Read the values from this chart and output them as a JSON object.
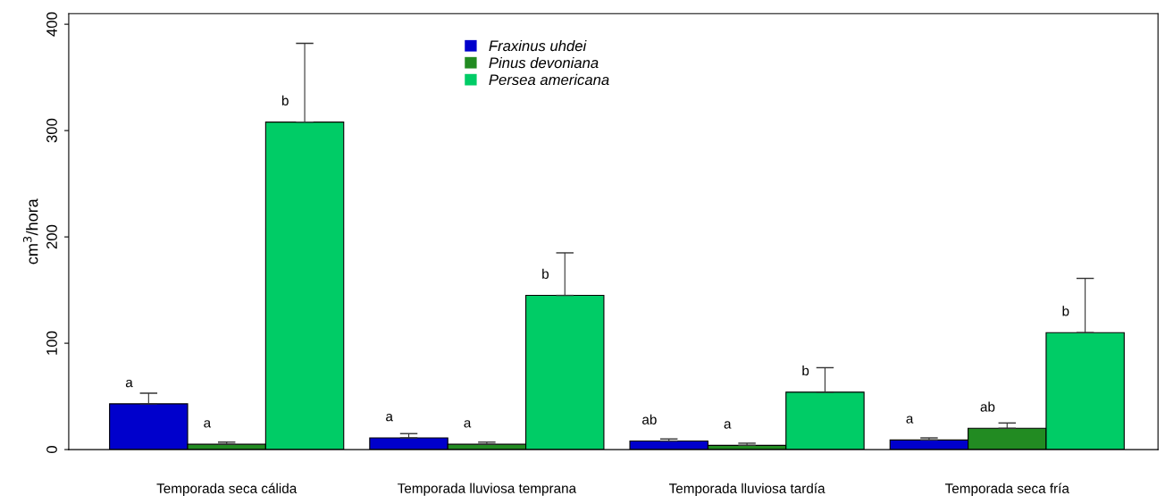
{
  "chart_data": {
    "type": "bar",
    "ylabel": "cm$^{3}$/hora",
    "categories": [
      "Temporada seca cálida",
      "Temporada lluviosa temprana",
      "Temporada lluviosa tardía",
      "Temporada seca fría"
    ],
    "series": [
      {
        "name": "Fraxinus uhdei",
        "color": "#0000cc",
        "values": [
          43,
          11,
          8,
          9
        ],
        "errors": [
          10,
          4,
          2,
          2
        ],
        "value_labels": [
          "a",
          "a",
          "ab",
          "a"
        ]
      },
      {
        "name": "Pinus devoniana",
        "color": "#228b22",
        "values": [
          5,
          5,
          4,
          20
        ],
        "errors": [
          2,
          2,
          2,
          5
        ],
        "value_labels": [
          "a",
          "a",
          "a",
          "ab"
        ]
      },
      {
        "name": "Persea americana",
        "color": "#00cc66",
        "values": [
          308,
          145,
          54,
          110
        ],
        "errors": [
          74,
          40,
          23,
          51
        ],
        "value_labels": [
          "b",
          "b",
          "b",
          "b"
        ]
      }
    ],
    "ylim": [
      0,
      410
    ],
    "yticks": [
      0,
      100,
      200,
      300,
      400
    ],
    "grid": false,
    "legend": "top"
  }
}
